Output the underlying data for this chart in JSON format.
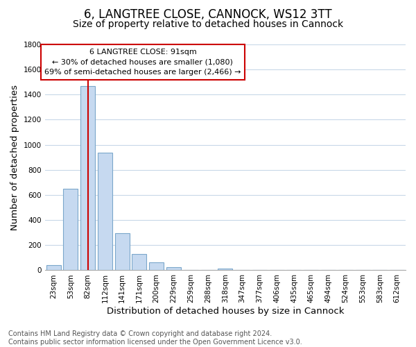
{
  "title": "6, LANGTREE CLOSE, CANNOCK, WS12 3TT",
  "subtitle": "Size of property relative to detached houses in Cannock",
  "xlabel": "Distribution of detached houses by size in Cannock",
  "ylabel": "Number of detached properties",
  "bar_labels": [
    "23sqm",
    "53sqm",
    "82sqm",
    "112sqm",
    "141sqm",
    "171sqm",
    "200sqm",
    "229sqm",
    "259sqm",
    "288sqm",
    "318sqm",
    "347sqm",
    "377sqm",
    "406sqm",
    "435sqm",
    "465sqm",
    "494sqm",
    "524sqm",
    "553sqm",
    "583sqm",
    "612sqm"
  ],
  "bar_values": [
    40,
    650,
    1470,
    935,
    295,
    130,
    65,
    25,
    0,
    0,
    15,
    0,
    0,
    0,
    0,
    0,
    0,
    0,
    0,
    0,
    0
  ],
  "bar_color": "#c6d9f0",
  "bar_edge_color": "#7BA7CB",
  "vline_x": 2,
  "vline_color": "#cc0000",
  "ylim": [
    0,
    1800
  ],
  "yticks": [
    0,
    200,
    400,
    600,
    800,
    1000,
    1200,
    1400,
    1600,
    1800
  ],
  "annotation_line1": "6 LANGTREE CLOSE: 91sqm",
  "annotation_line2": "← 30% of detached houses are smaller (1,080)",
  "annotation_line3": "69% of semi-detached houses are larger (2,466) →",
  "footer_text": "Contains HM Land Registry data © Crown copyright and database right 2024.\nContains public sector information licensed under the Open Government Licence v3.0.",
  "background_color": "#ffffff",
  "grid_color": "#c8d8e8",
  "title_fontsize": 12,
  "subtitle_fontsize": 10,
  "axis_label_fontsize": 9.5,
  "tick_fontsize": 7.5,
  "footer_fontsize": 7
}
